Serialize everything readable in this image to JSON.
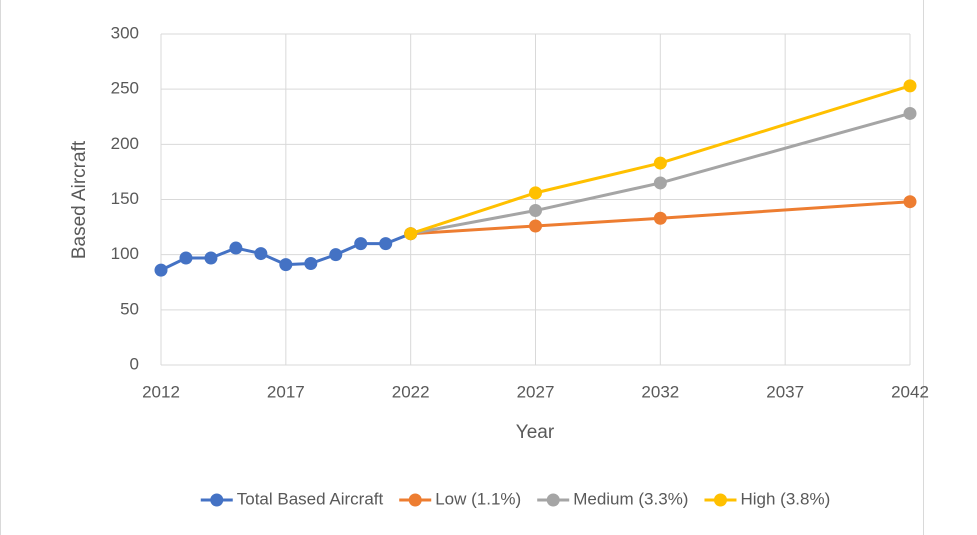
{
  "chart_data": {
    "type": "line",
    "y_label": "Based Aircraft",
    "x_label": "Year",
    "xlim": [
      2012,
      2042
    ],
    "xticks": [
      2012,
      2017,
      2022,
      2027,
      2032,
      2037,
      2042
    ],
    "ylim": [
      0,
      300
    ],
    "yticks": [
      0,
      50,
      100,
      150,
      200,
      250,
      300
    ],
    "grid": true,
    "legend": "bottom",
    "series": [
      {
        "name": "Total Based Aircraft",
        "color": "#4472c4",
        "x": [
          2012,
          2013,
          2014,
          2015,
          2016,
          2017,
          2018,
          2019,
          2020,
          2021,
          2022
        ],
        "values": [
          86,
          97,
          97,
          106,
          101,
          91,
          92,
          100,
          110,
          110,
          119
        ]
      },
      {
        "name": "Low (1.1%)",
        "color": "#ed7d31",
        "x": [
          2022,
          2027,
          2032,
          2042
        ],
        "values": [
          119,
          126,
          133,
          148
        ]
      },
      {
        "name": "Medium (3.3%)",
        "color": "#a5a5a5",
        "x": [
          2022,
          2027,
          2032,
          2042
        ],
        "values": [
          119,
          140,
          165,
          228
        ]
      },
      {
        "name": "High (3.8%)",
        "color": "#ffc000",
        "x": [
          2022,
          2027,
          2032,
          2042
        ],
        "values": [
          119,
          156,
          183,
          253
        ]
      }
    ]
  }
}
